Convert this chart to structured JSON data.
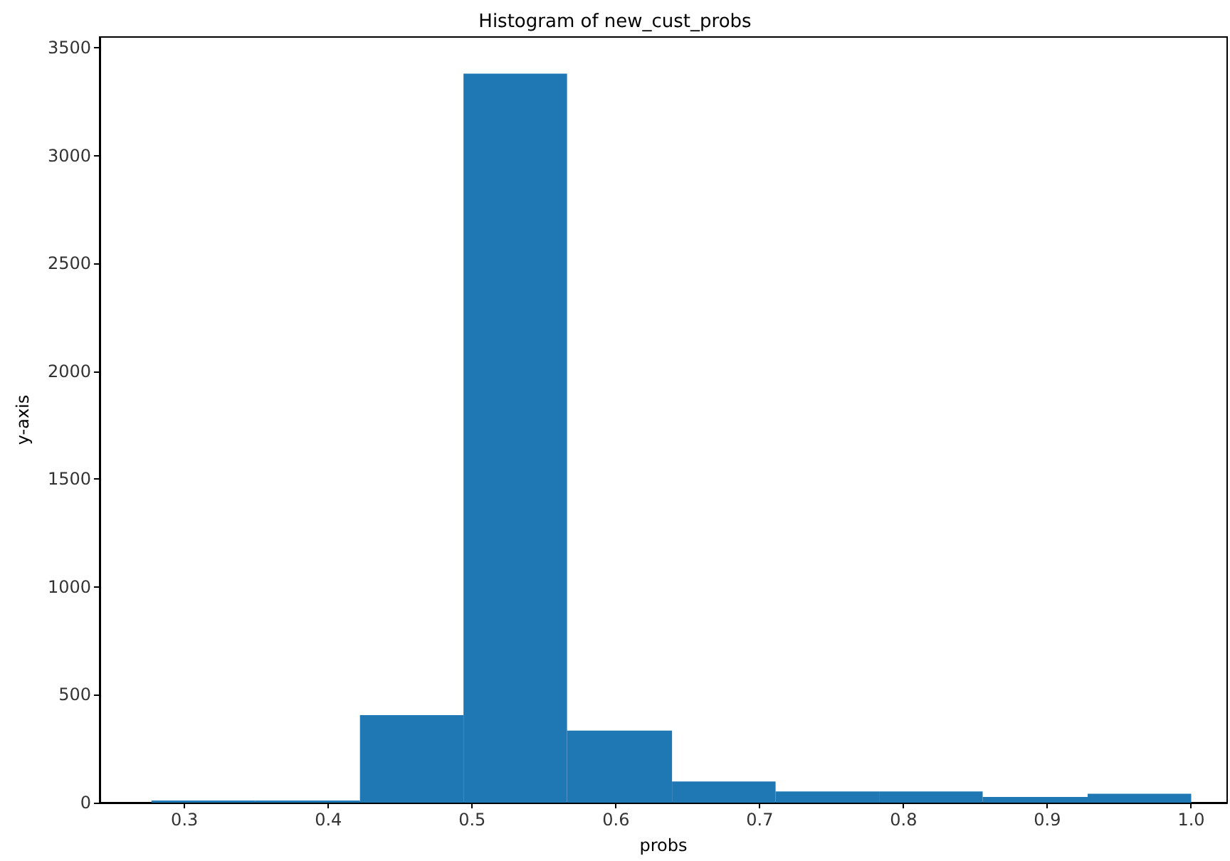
{
  "chart_data": {
    "type": "histogram",
    "title": "Histogram of new_cust_probs",
    "xlabel": "probs",
    "ylabel": "y-axis",
    "bins": [
      0.277,
      0.349,
      0.422,
      0.494,
      0.566,
      0.639,
      0.711,
      0.783,
      0.855,
      0.928,
      1.0
    ],
    "values": [
      10,
      10,
      406,
      3380,
      334,
      98,
      52,
      52,
      26,
      41
    ],
    "color": "#1f77b4",
    "xlim": [
      0.241,
      1.025
    ],
    "xticks": [
      {
        "value": 0.3,
        "label": "0.3"
      },
      {
        "value": 0.4,
        "label": "0.4"
      },
      {
        "value": 0.5,
        "label": "0.5"
      },
      {
        "value": 0.6,
        "label": "0.6"
      },
      {
        "value": 0.7,
        "label": "0.7"
      },
      {
        "value": 0.8,
        "label": "0.8"
      },
      {
        "value": 0.9,
        "label": "0.9"
      },
      {
        "value": 1.0,
        "label": "1.0"
      }
    ],
    "ylim": [
      0,
      3550
    ],
    "yticks": [
      0,
      500,
      1000,
      1500,
      2000,
      2500,
      3000,
      3500
    ],
    "grid": false
  }
}
